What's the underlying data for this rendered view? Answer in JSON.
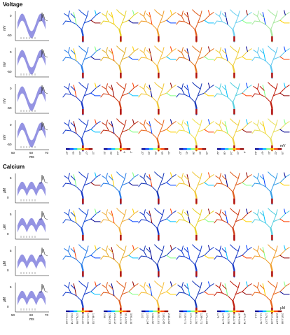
{
  "figure": {
    "voltage": {
      "title": "Voltage",
      "ylabel": "mV",
      "xlabel": "ms",
      "yticks": [
        "0",
        "-50"
      ],
      "xticks": [
        "50",
        "60",
        "70"
      ],
      "colorbar_unit": "mV",
      "colorbars": [
        [
          "-37",
          "-30",
          "-23",
          "-17",
          "-10"
        ],
        [
          "-30",
          "-22",
          "-14",
          "-6",
          "-2"
        ],
        [
          "-37",
          "-33",
          "-29",
          "-25",
          "-21"
        ],
        [
          "-37",
          "-31",
          "-26",
          "-20",
          "-15"
        ],
        [
          "-22",
          "-18",
          "-14",
          "-10",
          "-6"
        ],
        [
          "-44",
          "-37",
          "-30",
          "-22",
          "-15"
        ]
      ],
      "row_colors": [
        [
          "#1a4fd6",
          "#e8d22a",
          "#f0a030",
          "#e06020",
          "#6fd0f0",
          "#a8e8a0"
        ],
        [
          "#2a7ee8",
          "#e0b030",
          "#f6c040",
          "#e47a24",
          "#f0d040",
          "#60c8f0"
        ],
        [
          "#1c3cc8",
          "#d04018",
          "#f0c83a",
          "#1a3ab8",
          "#5ad0e0",
          "#c02010"
        ],
        [
          "#1a40cc",
          "#c03014",
          "#e86a20",
          "#f0e050",
          "#f0d040",
          "#e8e060"
        ]
      ]
    },
    "calcium": {
      "title": "Calcium",
      "ylabel": "μM",
      "xlabel": "ms",
      "yticks": [
        "5",
        "0"
      ],
      "xticks": [
        "50",
        "60",
        "70"
      ],
      "colorbar_unit": "μM",
      "colorbars": [
        [
          "0.01–0.62",
          "0.62–0.74",
          "0.74–0.99",
          "0.99–1.20",
          "1.20–1.46",
          "1.46–1.53"
        ],
        [
          "1.98",
          "1.98–2.03",
          "2.03–2.12",
          "2.12–3.13",
          "3.13–3.90",
          "3.90–4.16"
        ],
        [
          "1.02",
          "1.02–1.34",
          "1.34–1.52",
          "1.52–1.81",
          "1.81–2.45",
          "2.45–2.62"
        ],
        [
          "0.32",
          "0.32–0.71",
          "0.71–1.01",
          "1.01–1.36",
          "1.36–1.71",
          "1.71–1.83"
        ],
        [
          "1.79",
          "1.79–2.74",
          "2.74–3.38",
          "3.38–3.74",
          "3.74–3.99",
          "4.71–4.74"
        ],
        [
          "1.13",
          "1.13–1.76",
          "1.76–2.07",
          "2.07–2.39",
          "2.39–2.87",
          "2.87–4.88"
        ]
      ],
      "row_colors": [
        [
          "#1c3cc8",
          "#2a7ee8",
          "#1a3ab8",
          "#f0c83a",
          "#e06020",
          "#3aa0e8"
        ],
        [
          "#1a4fd6",
          "#f0b040",
          "#1c3cc8",
          "#e8d22a",
          "#d04018",
          "#5ad0e0"
        ],
        [
          "#2a7ee8",
          "#e8b030",
          "#1a3ab8",
          "#1a40cc",
          "#1c3cc8",
          "#f0a030"
        ],
        [
          "#1a40cc",
          "#e06020",
          "#f6c040",
          "#1a3ab8",
          "#c02010",
          "#e86a20"
        ]
      ]
    },
    "colors": {
      "trace_band": "#8a88e0",
      "trace_line": "#1a1a1a",
      "trunk": "#b01010",
      "jet": [
        "#00008f",
        "#0040ff",
        "#00c0ff",
        "#80ff80",
        "#ffd000",
        "#ff4000",
        "#900000"
      ]
    }
  }
}
